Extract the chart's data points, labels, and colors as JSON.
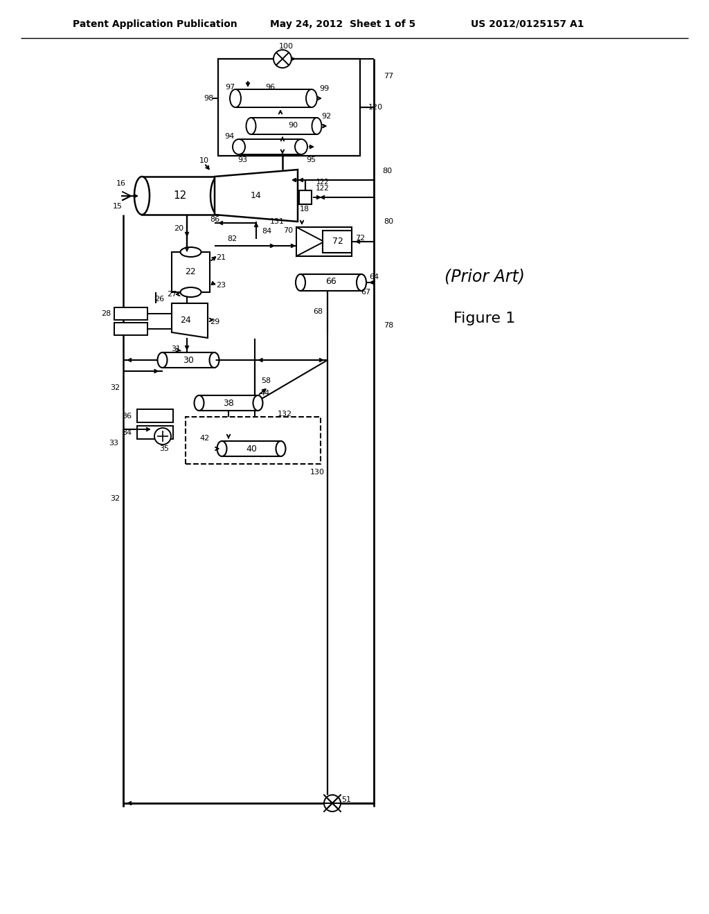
{
  "header_left": "Patent Application Publication",
  "header_mid": "May 24, 2012  Sheet 1 of 5",
  "header_right": "US 2012/0125157 A1",
  "label_prior_art": "(Prior Art)",
  "label_figure": "Figure 1",
  "bg_color": "#ffffff"
}
